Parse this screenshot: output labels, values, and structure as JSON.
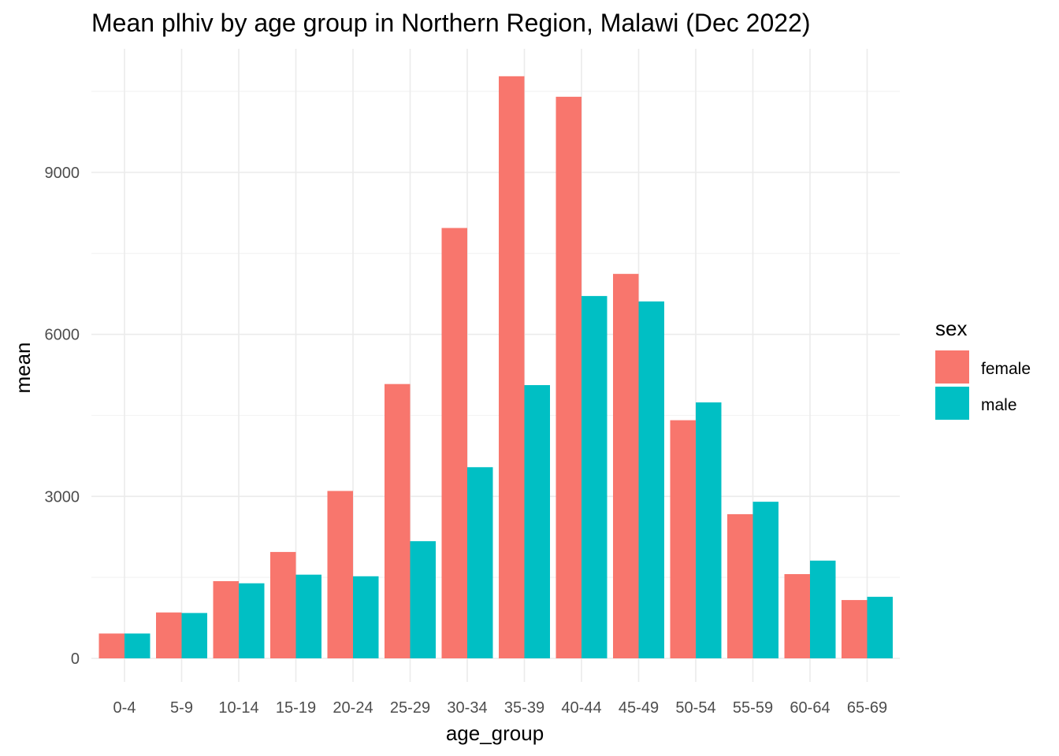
{
  "chart_data": {
    "type": "bar",
    "title": "Mean plhiv by age group in Northern Region, Malawi (Dec 2022)",
    "xlabel": "age_group",
    "ylabel": "mean",
    "categories": [
      "0-4",
      "5-9",
      "10-14",
      "15-19",
      "20-24",
      "25-29",
      "30-34",
      "35-39",
      "40-44",
      "45-49",
      "50-54",
      "55-59",
      "60-64",
      "65-69"
    ],
    "series": [
      {
        "name": "female",
        "color": "#F8766D",
        "values": [
          460,
          850,
          1430,
          1970,
          3100,
          5080,
          7970,
          10780,
          10400,
          7120,
          4410,
          2670,
          1560,
          1080
        ]
      },
      {
        "name": "male",
        "color": "#00BFC4",
        "values": [
          460,
          840,
          1390,
          1550,
          1520,
          2170,
          3540,
          5060,
          6710,
          6610,
          4740,
          2900,
          1810,
          1140
        ]
      }
    ],
    "yticks": [
      0,
      3000,
      6000,
      9000
    ],
    "ylim": [
      -450,
      11250
    ],
    "grid": true,
    "legend": {
      "title": "sex",
      "position": "right"
    }
  }
}
